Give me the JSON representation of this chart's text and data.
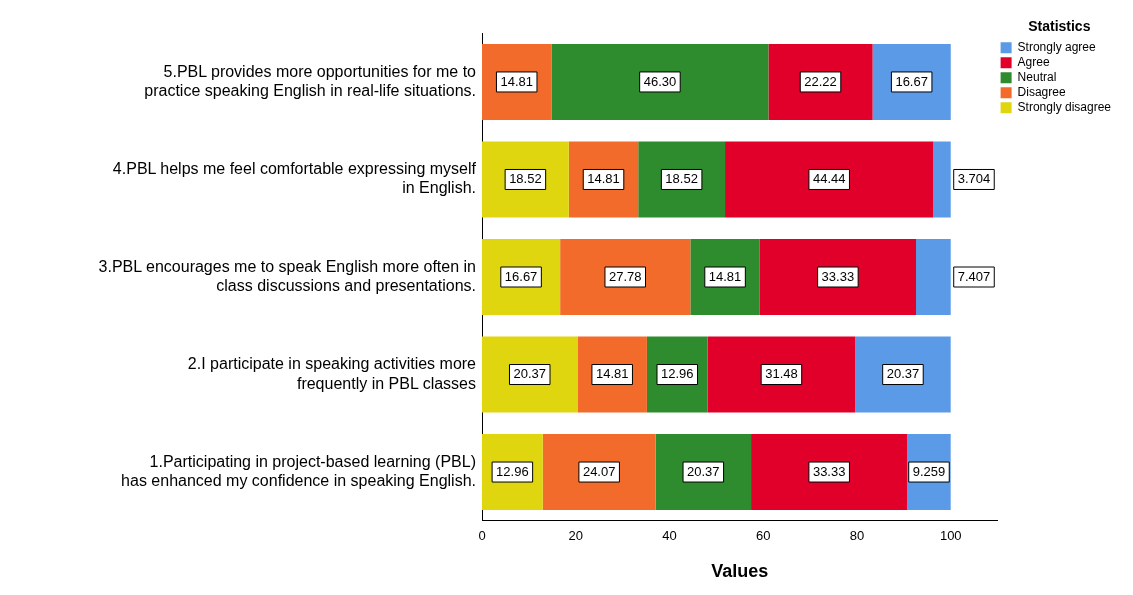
{
  "chart_data": {
    "type": "bar",
    "orientation": "horizontal",
    "stacked": true,
    "xlabel": "Values",
    "legend_title": "Statistics",
    "legend": "top right",
    "grid": false,
    "data_labels": true,
    "categories": [
      "5.PBL provides more opportunities for me to practice speaking English in real-life situations.",
      "4.PBL helps me feel comfortable expressing myself in English.",
      "3.PBL encourages me to speak English more often in class discussions and presentations.",
      "2.I participate in speaking activities more frequently in PBL classes",
      "1.Participating in project-based learning (PBL) has enhanced my confidence in speaking English."
    ],
    "xlim": [
      0,
      110
    ],
    "xticks": [
      0,
      20,
      40,
      60,
      80,
      100
    ],
    "series": [
      {
        "name": "Strongly disagree",
        "color": "#e0d60f",
        "values": [
          null,
          18.52,
          16.67,
          20.37,
          12.96
        ],
        "value_labels": [
          null,
          "18.52",
          "16.67",
          "20.37",
          "12.96"
        ]
      },
      {
        "name": "Disagree",
        "color": "#f26b2a",
        "values": [
          14.81,
          14.81,
          27.78,
          14.81,
          24.07
        ],
        "value_labels": [
          "14.81",
          "14.81",
          "27.78",
          "14.81",
          "24.07"
        ]
      },
      {
        "name": "Neutral",
        "color": "#2e8b2e",
        "values": [
          46.3,
          18.52,
          14.81,
          12.96,
          20.37
        ],
        "value_labels": [
          "46.30",
          "18.52",
          "14.81",
          "12.96",
          "20.37"
        ]
      },
      {
        "name": "Agree",
        "color": "#e0002a",
        "values": [
          22.22,
          44.44,
          33.33,
          31.48,
          33.33
        ],
        "value_labels": [
          "22.22",
          "44.44",
          "33.33",
          "31.48",
          "33.33"
        ]
      },
      {
        "name": "Strongly agree",
        "color": "#5a9ae6",
        "values": [
          16.67,
          3.704,
          7.407,
          20.37,
          9.259
        ],
        "value_labels": [
          "16.67",
          "3.704",
          "7.407",
          "20.37",
          "9.259"
        ]
      }
    ]
  }
}
